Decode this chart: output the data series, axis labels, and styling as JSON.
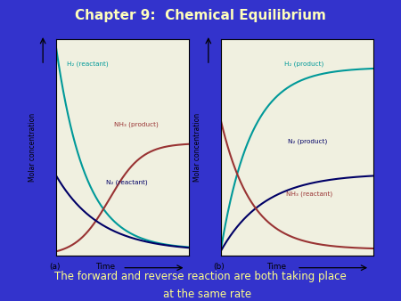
{
  "title": "Chapter 9:  Chemical Equilibrium",
  "subtitle_line1": "The forward and reverse reaction are both taking place",
  "subtitle_line2": "    at the same rate",
  "title_color": "#FFFFBB",
  "subtitle_color": "#FFFF88",
  "bg_color": "#3333CC",
  "panel_bg": "#F0F0E0",
  "grid_color": "#BBBBBB",
  "ylabel": "Molar concentration",
  "xlabel_a": "(a)",
  "xlabel_b": "(b)",
  "time_label": "Time",
  "panel_a": {
    "H2_color": "#009999",
    "NH3_color": "#993333",
    "N2_color": "#000066",
    "H2_label": "H₂ (reactant)",
    "NH3_label": "NH₃ (product)",
    "N2_label": "N₂ (reactant)"
  },
  "panel_b": {
    "H2_color": "#009999",
    "N2_color": "#000066",
    "NH3_color": "#993333",
    "H2_label": "H₂ (product)",
    "N2_label": "N₂ (product)",
    "NH3_label": "NH₃ (reactant)"
  }
}
